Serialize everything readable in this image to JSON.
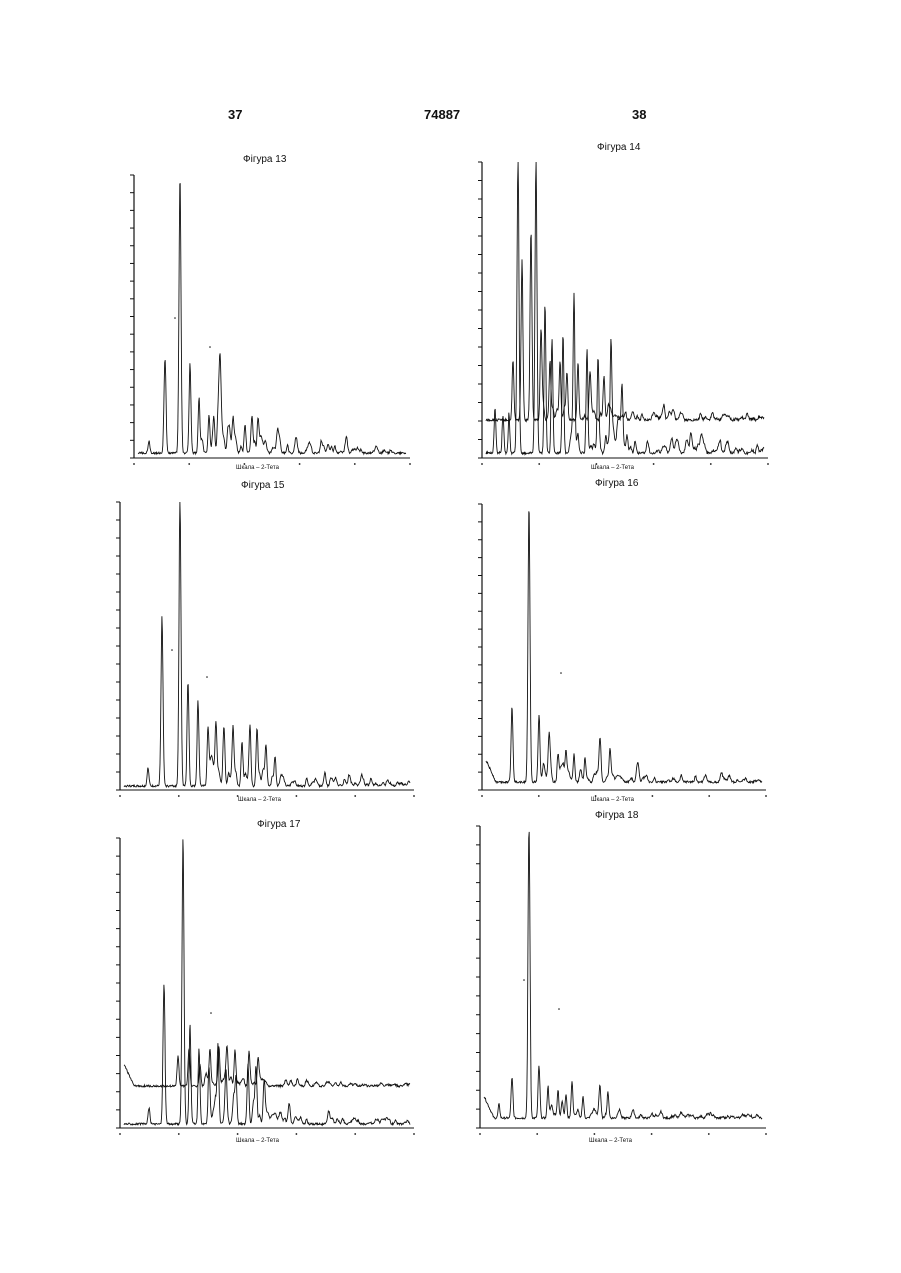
{
  "header": {
    "left_page": "37",
    "doc_number": "74887",
    "right_page": "38"
  },
  "figures": [
    {
      "title": "Фігура 13",
      "xlabel": "Шкала – 2-Тета"
    },
    {
      "title": "Фігура 14",
      "xlabel": "Шкала – 2-Тета"
    },
    {
      "title": "Фігура 15",
      "xlabel": "Шкала – 2-Тета"
    },
    {
      "title": "Фігура 16",
      "xlabel": "Шкала – 2-Тета"
    },
    {
      "title": "Фігура 17",
      "xlabel": "Шкала – 2-Тета"
    },
    {
      "title": "Фігура 18",
      "xlabel": "Шкала – 2-Тета"
    }
  ],
  "colors": {
    "ink": "#111111",
    "paper": "#ffffff"
  }
}
